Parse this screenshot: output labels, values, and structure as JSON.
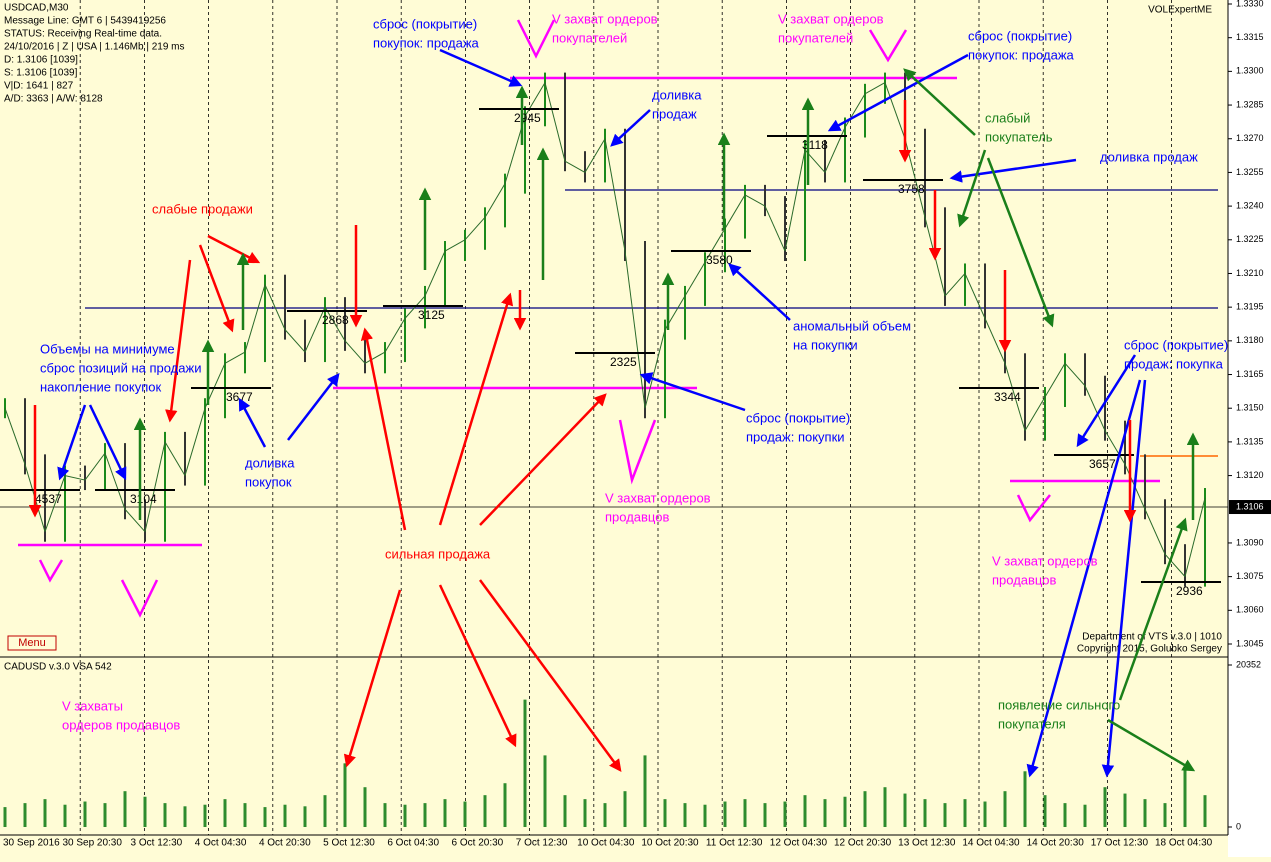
{
  "header": {
    "symbol": "USDCAD,M30",
    "message_line": "Message Line: GMT 6 | 5439419256",
    "status": "STATUS:  Receiving Real-time data.",
    "info": "24/10/2016 | Z | USA | 1.146Mb | 219 ms",
    "d": "D: 1.3106  [1039]",
    "s": "S: 1.3106  [1039]",
    "vd": "V|D: 1641 | 827",
    "ad": "A/D: 3363 | A/W: 8128"
  },
  "brand": "VOLExpertME",
  "menu": "Menu",
  "footer": [
    "Department of VTS  v.3.0 | 1010",
    "Copyright 2015, Golubko Sergey"
  ],
  "price_axis": {
    "ticks": [
      {
        "value": 1.333,
        "label": "1.3330"
      },
      {
        "value": 1.3315,
        "label": "1.3315"
      },
      {
        "value": 1.33,
        "label": "1.3300"
      },
      {
        "value": 1.3285,
        "label": "1.3285"
      },
      {
        "value": 1.327,
        "label": "1.3270"
      },
      {
        "value": 1.3255,
        "label": "1.3255"
      },
      {
        "value": 1.324,
        "label": "1.3240"
      },
      {
        "value": 1.3225,
        "label": "1.3225"
      },
      {
        "value": 1.321,
        "label": "1.3210"
      },
      {
        "value": 1.3195,
        "label": "1.3195"
      },
      {
        "value": 1.318,
        "label": "1.3180"
      },
      {
        "value": 1.3165,
        "label": "1.3165"
      },
      {
        "value": 1.315,
        "label": "1.3150"
      },
      {
        "value": 1.3135,
        "label": "1.3135"
      },
      {
        "value": 1.312,
        "label": "1.3120"
      },
      {
        "value": 1.309,
        "label": "1.3090"
      },
      {
        "value": 1.3075,
        "label": "1.3075"
      },
      {
        "value": 1.306,
        "label": "1.3060"
      },
      {
        "value": 1.3045,
        "label": "1.3045"
      }
    ],
    "current": 1.3106
  },
  "time_axis": [
    "30 Sep 2016",
    "30 Sep 20:30",
    "3 Oct 12:30",
    "4 Oct 04:30",
    "4 Oct 20:30",
    "5 Oct 12:30",
    "6 Oct 04:30",
    "6 Oct 20:30",
    "7 Oct 12:30",
    "10 Oct 04:30",
    "10 Oct 20:30",
    "11 Oct 12:30",
    "12 Oct 04:30",
    "12 Oct 20:30",
    "13 Oct 12:30",
    "14 Oct 04:30",
    "14 Oct 20:30",
    "17 Oct 12:30",
    "18 Oct 04:30"
  ],
  "price": {
    "closes": [
      1.315,
      1.3125,
      1.3095,
      1.312,
      1.3118,
      1.313,
      1.3105,
      1.3095,
      1.3135,
      1.312,
      1.315,
      1.317,
      1.3175,
      1.3205,
      1.3185,
      1.3175,
      1.3195,
      1.318,
      1.317,
      1.3175,
      1.319,
      1.32,
      1.322,
      1.3225,
      1.3235,
      1.325,
      1.328,
      1.3295,
      1.326,
      1.3255,
      1.327,
      1.322,
      1.315,
      1.3185,
      1.32,
      1.3215,
      1.323,
      1.3245,
      1.324,
      1.322,
      1.3265,
      1.3255,
      1.3275,
      1.329,
      1.3295,
      1.327,
      1.3235,
      1.32,
      1.321,
      1.319,
      1.317,
      1.314,
      1.3155,
      1.317,
      1.316,
      1.314,
      1.3125,
      1.3105,
      1.3085,
      1.3075,
      1.311
    ]
  },
  "levels": [
    4537,
    3104,
    3677,
    2868,
    3125,
    2945,
    2325,
    3580,
    3118,
    3758,
    3344,
    3657,
    2936
  ],
  "volume_panel": {
    "title": "CADUSD v.3.0 VSA 542",
    "ticks": [
      0,
      20352
    ],
    "values": [
      2500,
      3000,
      3500,
      2800,
      3200,
      3000,
      4500,
      3800,
      3000,
      2600,
      2800,
      3500,
      3000,
      2500,
      2800,
      2600,
      4000,
      8000,
      5000,
      3000,
      2800,
      3000,
      3500,
      3200,
      4000,
      5500,
      16000,
      9000,
      4000,
      3500,
      3000,
      4500,
      9000,
      3500,
      3000,
      2800,
      3200,
      3500,
      3000,
      3200,
      4000,
      3500,
      3800,
      4500,
      5000,
      4200,
      3500,
      3000,
      3500,
      3200,
      4500,
      7000,
      4000,
      3000,
      2800,
      5000,
      4200,
      3500,
      3000,
      7500,
      4000
    ]
  },
  "annotations": [
    [
      "сброс (покрытие)",
      "покупок: продажа"
    ],
    [
      "V захват ордеров",
      "покупателей"
    ],
    [
      "V захват ордеров",
      "покупателей"
    ],
    [
      "сброс (покрытие)",
      "покупок: продажа"
    ],
    [
      "доливка",
      "продаж"
    ],
    [
      "слабый",
      "покупатель"
    ],
    [
      "доливка продаж"
    ],
    [
      "слабые продажи"
    ],
    [
      "Объемы на минимуме",
      "сброс позиций на продажи",
      "накопление покупок"
    ],
    [
      "доливка",
      "покупок"
    ],
    [
      "аномальный объем",
      "на покупки"
    ],
    [
      "сброс (покрытие)",
      "продаж: покупки"
    ],
    [
      "V захват ордеров",
      "продавцов"
    ],
    [
      "сильная продажа"
    ],
    [
      "V захват ордеров",
      "продавцов"
    ],
    [
      "сброс (покрытие)",
      "продаж: покупка"
    ],
    [
      "V захваты",
      "ордеров продавцов"
    ],
    [
      "появление сильного",
      "покупателя"
    ]
  ]
}
